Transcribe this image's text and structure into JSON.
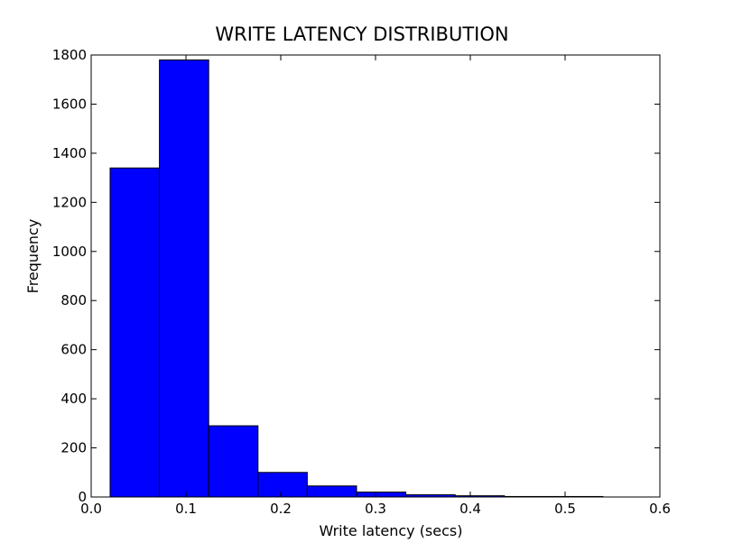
{
  "chart_data": {
    "type": "bar",
    "subtype": "histogram",
    "title": "WRITE LATENCY DISTRIBUTION",
    "xlabel": "Write latency (secs)",
    "ylabel": "Frequency",
    "xlim": [
      0.0,
      0.6
    ],
    "ylim": [
      0,
      1800
    ],
    "x_ticks": [
      "0.0",
      "0.1",
      "0.2",
      "0.3",
      "0.4",
      "0.5",
      "0.6"
    ],
    "y_ticks": [
      "0",
      "200",
      "400",
      "600",
      "800",
      "1000",
      "1200",
      "1400",
      "1600",
      "1800"
    ],
    "bins": [
      {
        "x_start": 0.02,
        "x_end": 0.072,
        "value": 1340
      },
      {
        "x_start": 0.072,
        "x_end": 0.124,
        "value": 1780
      },
      {
        "x_start": 0.124,
        "x_end": 0.176,
        "value": 290
      },
      {
        "x_start": 0.176,
        "x_end": 0.228,
        "value": 100
      },
      {
        "x_start": 0.228,
        "x_end": 0.28,
        "value": 45
      },
      {
        "x_start": 0.28,
        "x_end": 0.332,
        "value": 20
      },
      {
        "x_start": 0.332,
        "x_end": 0.384,
        "value": 9
      },
      {
        "x_start": 0.384,
        "x_end": 0.436,
        "value": 5
      },
      {
        "x_start": 0.436,
        "x_end": 0.488,
        "value": 2
      },
      {
        "x_start": 0.488,
        "x_end": 0.54,
        "value": 2
      }
    ],
    "grid": false,
    "legend": "none",
    "bar_color": "#0000ff",
    "edge_color": "#000000"
  }
}
